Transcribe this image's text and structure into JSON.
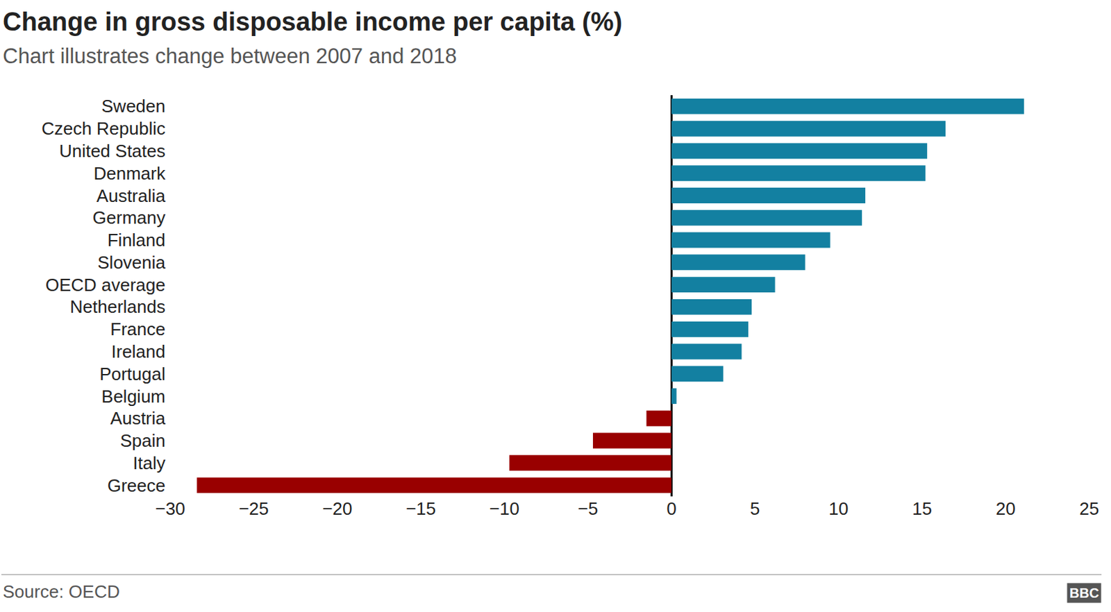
{
  "chart_data": {
    "type": "bar",
    "orientation": "horizontal",
    "title": "Change in gross disposable income per capita (%)",
    "subtitle": "Chart illustrates change between 2007 and 2018",
    "source": "Source: OECD",
    "logo": "BBC",
    "categories": [
      "Sweden",
      "Czech Republic",
      "United States",
      "Denmark",
      "Australia",
      "Germany",
      "Finland",
      "Slovenia",
      "OECD average",
      "Netherlands",
      "France",
      "Ireland",
      "Portugal",
      "Belgium",
      "Austria",
      "Spain",
      "Italy",
      "Greece"
    ],
    "values": [
      21.1,
      16.4,
      15.3,
      15.2,
      11.6,
      11.4,
      9.5,
      8.0,
      6.2,
      4.8,
      4.6,
      4.2,
      3.1,
      0.3,
      -1.5,
      -4.7,
      -9.7,
      -28.4
    ],
    "colors": [
      "#1380a1",
      "#1380a1",
      "#1380a1",
      "#1380a1",
      "#1380a1",
      "#1380a1",
      "#1380a1",
      "#1380a1",
      "#1380a1",
      "#1380a1",
      "#1380a1",
      "#1380a1",
      "#1380a1",
      "#1380a1",
      "#990000",
      "#990000",
      "#990000",
      "#990000"
    ],
    "xlim": [
      -30,
      25
    ],
    "xticks": [
      {
        "value": -30,
        "label": "−30"
      },
      {
        "value": -25,
        "label": "−25"
      },
      {
        "value": -20,
        "label": "−20"
      },
      {
        "value": -15,
        "label": "−15"
      },
      {
        "value": -10,
        "label": "−10"
      },
      {
        "value": -5,
        "label": "−5"
      },
      0,
      5,
      10,
      15,
      20,
      25
    ],
    "grid": false
  }
}
